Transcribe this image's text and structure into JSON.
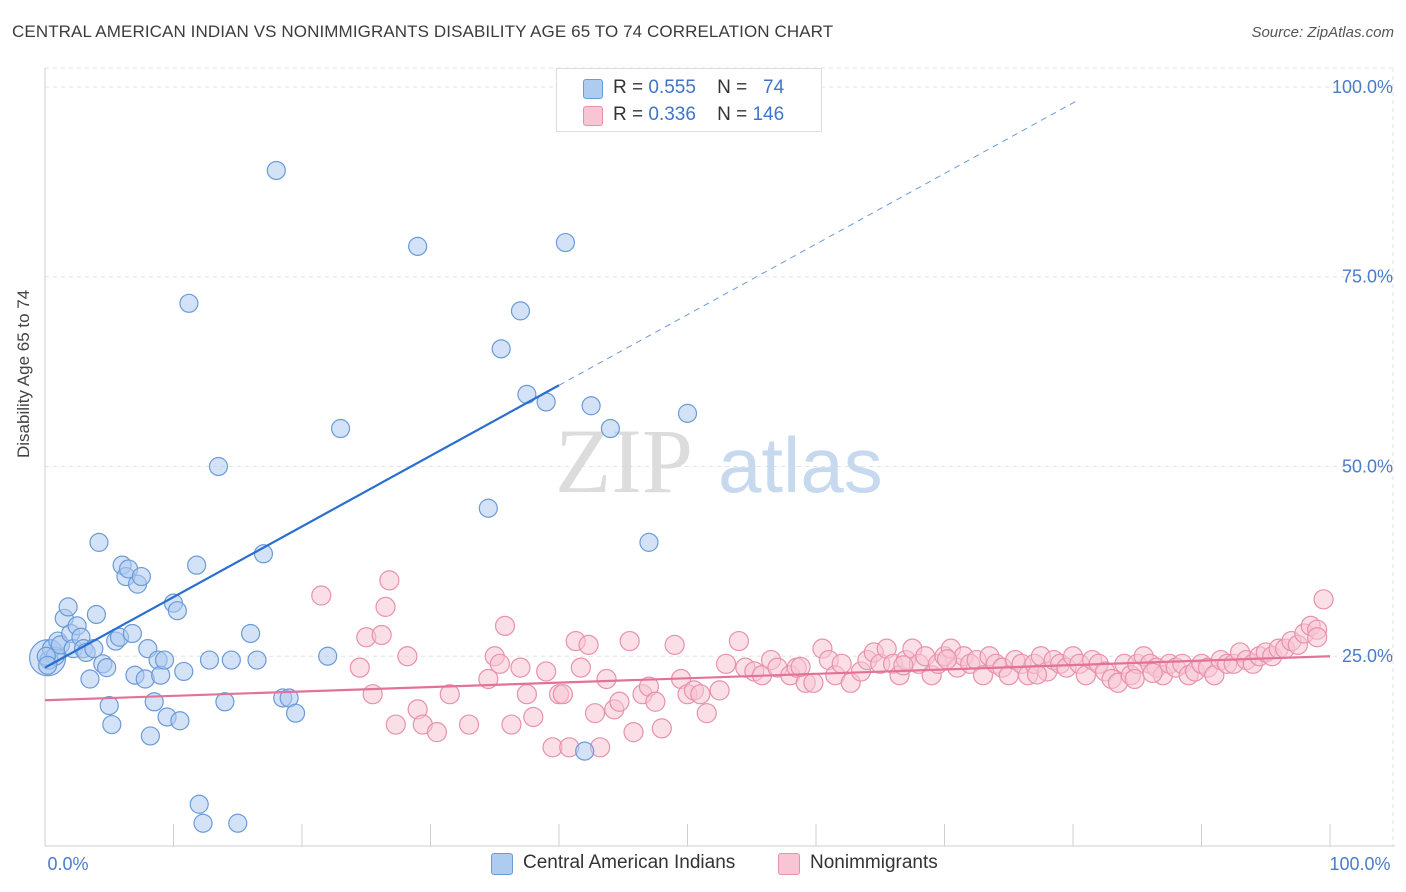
{
  "title": "CENTRAL AMERICAN INDIAN VS NONIMMIGRANTS DISABILITY AGE 65 TO 74 CORRELATION CHART",
  "source": "Source: ZipAtlas.com",
  "watermark": {
    "zip": "ZIP",
    "atlas": "atlas"
  },
  "legend": {
    "r_label": "R =",
    "n_label": "N =",
    "series1": {
      "r": "0.555",
      "n": "74"
    },
    "series2": {
      "r": "0.336",
      "n": "146"
    }
  },
  "bottom_legend": [
    "Central American Indians",
    "Nonimmigrants"
  ],
  "colors": {
    "blue_fill": "#aecbf0",
    "blue_stroke": "#6a9bd8",
    "blue_line": "#2a6fcf",
    "pink_fill": "#f7c5d4",
    "pink_stroke": "#e891ad",
    "pink_line": "#e2729a",
    "tick_text": "#4a7cc9"
  },
  "chart_data": {
    "type": "scatter",
    "title": "CENTRAL AMERICAN INDIAN VS NONIMMIGRANTS DISABILITY AGE 65 TO 74 CORRELATION CHART",
    "xlabel": "",
    "ylabel": "Disability Age 65 to 74",
    "xlim": [
      0,
      100
    ],
    "ylim": [
      0,
      102.5
    ],
    "x_ticks": [
      "0.0%",
      "100.0%"
    ],
    "y_ticks": [
      "25.0%",
      "50.0%",
      "75.0%",
      "100.0%"
    ],
    "y_tick_values": [
      25,
      50,
      75,
      100
    ],
    "grid": true,
    "series": [
      {
        "name": "Central American Indians",
        "r": 0.555,
        "n": 74,
        "trend": {
          "x0": 0,
          "y0": 23.5,
          "x1": 40,
          "y1": 60.7,
          "x_dash_end": 80.5
        },
        "points": [
          [
            0.3,
            24.5
          ],
          [
            0.5,
            26
          ],
          [
            0.8,
            25
          ],
          [
            1.0,
            27
          ],
          [
            1.2,
            26.5
          ],
          [
            1.5,
            30
          ],
          [
            1.8,
            31.5
          ],
          [
            2.0,
            28
          ],
          [
            2.2,
            26
          ],
          [
            2.5,
            29
          ],
          [
            2.8,
            27.5
          ],
          [
            3.0,
            26
          ],
          [
            3.2,
            25.5
          ],
          [
            3.5,
            22
          ],
          [
            3.8,
            26
          ],
          [
            4.0,
            30.5
          ],
          [
            4.2,
            40
          ],
          [
            4.5,
            24
          ],
          [
            4.8,
            23.5
          ],
          [
            5.0,
            18.5
          ],
          [
            5.2,
            16
          ],
          [
            5.5,
            27
          ],
          [
            5.8,
            27.5
          ],
          [
            6.0,
            37
          ],
          [
            6.3,
            35.5
          ],
          [
            6.5,
            36.5
          ],
          [
            6.8,
            28
          ],
          [
            7.0,
            22.5
          ],
          [
            7.2,
            34.5
          ],
          [
            7.5,
            35.5
          ],
          [
            7.8,
            22
          ],
          [
            8.0,
            26
          ],
          [
            8.2,
            14.5
          ],
          [
            8.5,
            19
          ],
          [
            8.8,
            24.5
          ],
          [
            9.0,
            22.5
          ],
          [
            9.3,
            24.5
          ],
          [
            9.5,
            17
          ],
          [
            10.0,
            32
          ],
          [
            10.3,
            31
          ],
          [
            10.5,
            16.5
          ],
          [
            10.8,
            23
          ],
          [
            11.2,
            71.5
          ],
          [
            11.8,
            37
          ],
          [
            12.0,
            5.5
          ],
          [
            12.3,
            3
          ],
          [
            12.8,
            24.5
          ],
          [
            13.5,
            50
          ],
          [
            14.0,
            19
          ],
          [
            14.5,
            24.5
          ],
          [
            15.0,
            3
          ],
          [
            16.0,
            28
          ],
          [
            16.5,
            24.5
          ],
          [
            17.0,
            38.5
          ],
          [
            18.0,
            89
          ],
          [
            18.5,
            19.5
          ],
          [
            19.0,
            19.5
          ],
          [
            19.5,
            17.5
          ],
          [
            22.0,
            25
          ],
          [
            23.0,
            55
          ],
          [
            29.0,
            79
          ],
          [
            34.5,
            44.5
          ],
          [
            35.5,
            65.5
          ],
          [
            37.0,
            70.5
          ],
          [
            37.5,
            59.5
          ],
          [
            39.0,
            58.5
          ],
          [
            40.5,
            79.5
          ],
          [
            42.0,
            12.5
          ],
          [
            42.5,
            58
          ],
          [
            44.0,
            55
          ],
          [
            47.0,
            40
          ],
          [
            50.0,
            57
          ],
          [
            0.1,
            25
          ],
          [
            0.2,
            23.8
          ]
        ]
      },
      {
        "name": "Nonimmigrants",
        "r": 0.336,
        "n": 146,
        "trend": {
          "x0": 0,
          "y0": 19.2,
          "x1": 100,
          "y1": 25
        }
      }
    ]
  }
}
